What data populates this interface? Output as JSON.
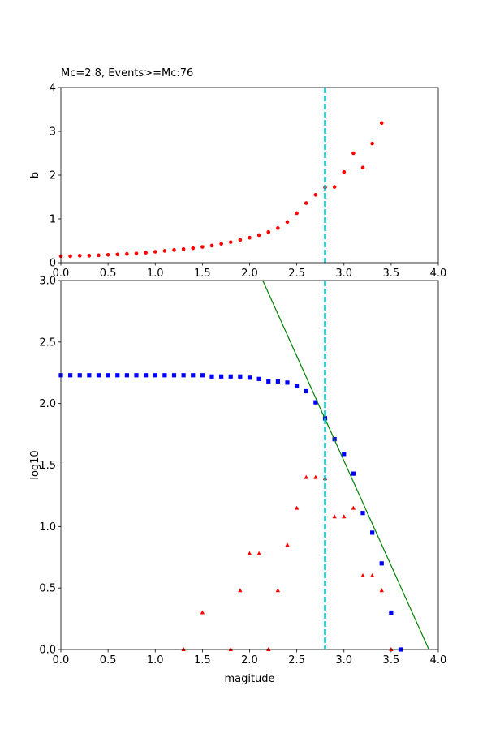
{
  "chart_data": [
    {
      "type": "scatter",
      "title": "Mc=2.8, Events>=Mc:76",
      "y_label": "b",
      "xlim": [
        0,
        4
      ],
      "ylim": [
        0,
        4
      ],
      "xticks": [
        {
          "value": 0,
          "label": "0.0"
        },
        0.5,
        {
          "value": 1,
          "label": "1.0"
        },
        1.5,
        {
          "value": 2,
          "label": "2.0"
        },
        2.5,
        {
          "value": 3,
          "label": "3.0"
        },
        3.5,
        {
          "value": 4,
          "label": "4.0"
        }
      ],
      "yticks": [
        0,
        1,
        2,
        3,
        4
      ],
      "vline": {
        "value": 2.8,
        "color": "#00bfbf"
      },
      "series": [
        {
          "marker": "circle",
          "color": "#ff0000",
          "x": [
            0,
            0.1,
            0.2,
            0.3,
            0.4,
            0.5,
            0.6,
            0.7,
            0.8,
            0.9,
            1.0,
            1.1,
            1.2,
            1.3,
            1.4,
            1.5,
            1.6,
            1.7,
            1.8,
            1.9,
            2.0,
            2.1,
            2.2,
            2.3,
            2.4,
            2.5,
            2.6,
            2.7,
            2.8,
            2.9,
            3.0,
            3.1,
            3.2,
            3.3,
            3.4
          ],
          "values": [
            0.15,
            0.15,
            0.16,
            0.16,
            0.17,
            0.18,
            0.19,
            0.2,
            0.21,
            0.23,
            0.25,
            0.27,
            0.29,
            0.31,
            0.33,
            0.36,
            0.39,
            0.43,
            0.47,
            0.52,
            0.57,
            0.63,
            0.7,
            0.79,
            0.93,
            1.13,
            1.36,
            1.55,
            1.72,
            1.73,
            2.07,
            2.5,
            2.17,
            2.72,
            3.19
          ]
        }
      ]
    },
    {
      "type": "scatter",
      "x_label": "magitude",
      "y_label": "log10",
      "xlim": [
        0,
        4
      ],
      "ylim": [
        0,
        3
      ],
      "xticks": [
        {
          "value": 0,
          "label": "0.0"
        },
        0.5,
        {
          "value": 1,
          "label": "1.0"
        },
        1.5,
        {
          "value": 2,
          "label": "2.0"
        },
        2.5,
        {
          "value": 3,
          "label": "3.0"
        },
        3.5,
        {
          "value": 4,
          "label": "4.0"
        }
      ],
      "yticks": [
        {
          "value": 0,
          "label": "0.0"
        },
        0.5,
        {
          "value": 1,
          "label": "1.0"
        },
        1.5,
        {
          "value": 2,
          "label": "2.0"
        },
        2.5,
        {
          "value": 3,
          "label": "3.0"
        }
      ],
      "vline": {
        "value": 2.8,
        "color": "#00bfbf"
      },
      "series": [
        {
          "marker": "square",
          "color": "#0000ff",
          "x": [
            0,
            0.1,
            0.2,
            0.3,
            0.4,
            0.5,
            0.6,
            0.7,
            0.8,
            0.9,
            1.0,
            1.1,
            1.2,
            1.3,
            1.4,
            1.5,
            1.6,
            1.7,
            1.8,
            1.9,
            2.0,
            2.1,
            2.2,
            2.3,
            2.4,
            2.5,
            2.6,
            2.7,
            2.8,
            2.9,
            3.0,
            3.1,
            3.2,
            3.3,
            3.4,
            3.5,
            3.6
          ],
          "values": [
            2.23,
            2.23,
            2.23,
            2.23,
            2.23,
            2.23,
            2.23,
            2.23,
            2.23,
            2.23,
            2.23,
            2.23,
            2.23,
            2.23,
            2.23,
            2.23,
            2.22,
            2.22,
            2.22,
            2.22,
            2.21,
            2.2,
            2.18,
            2.18,
            2.17,
            2.14,
            2.1,
            2.01,
            1.88,
            1.71,
            1.59,
            1.43,
            1.11,
            0.95,
            0.7,
            0.3,
            0
          ]
        },
        {
          "marker": "triangle",
          "color": "#ff0000",
          "x": [
            1.3,
            1.5,
            1.8,
            1.9,
            2.0,
            2.1,
            2.2,
            2.3,
            2.4,
            2.5,
            2.6,
            2.7,
            2.8,
            2.9,
            3.0,
            3.1,
            3.2,
            3.3,
            3.4,
            3.5
          ],
          "values": [
            0,
            0.3,
            0,
            0.48,
            0.78,
            0.78,
            0,
            0.48,
            0.85,
            1.15,
            1.4,
            1.4,
            1.39,
            1.08,
            1.08,
            1.15,
            0.6,
            0.6,
            0.48,
            0
          ]
        },
        {
          "marker": "line",
          "color": "#008000",
          "x": [
            2.14,
            3.9
          ],
          "values": [
            3,
            0
          ]
        }
      ]
    }
  ]
}
